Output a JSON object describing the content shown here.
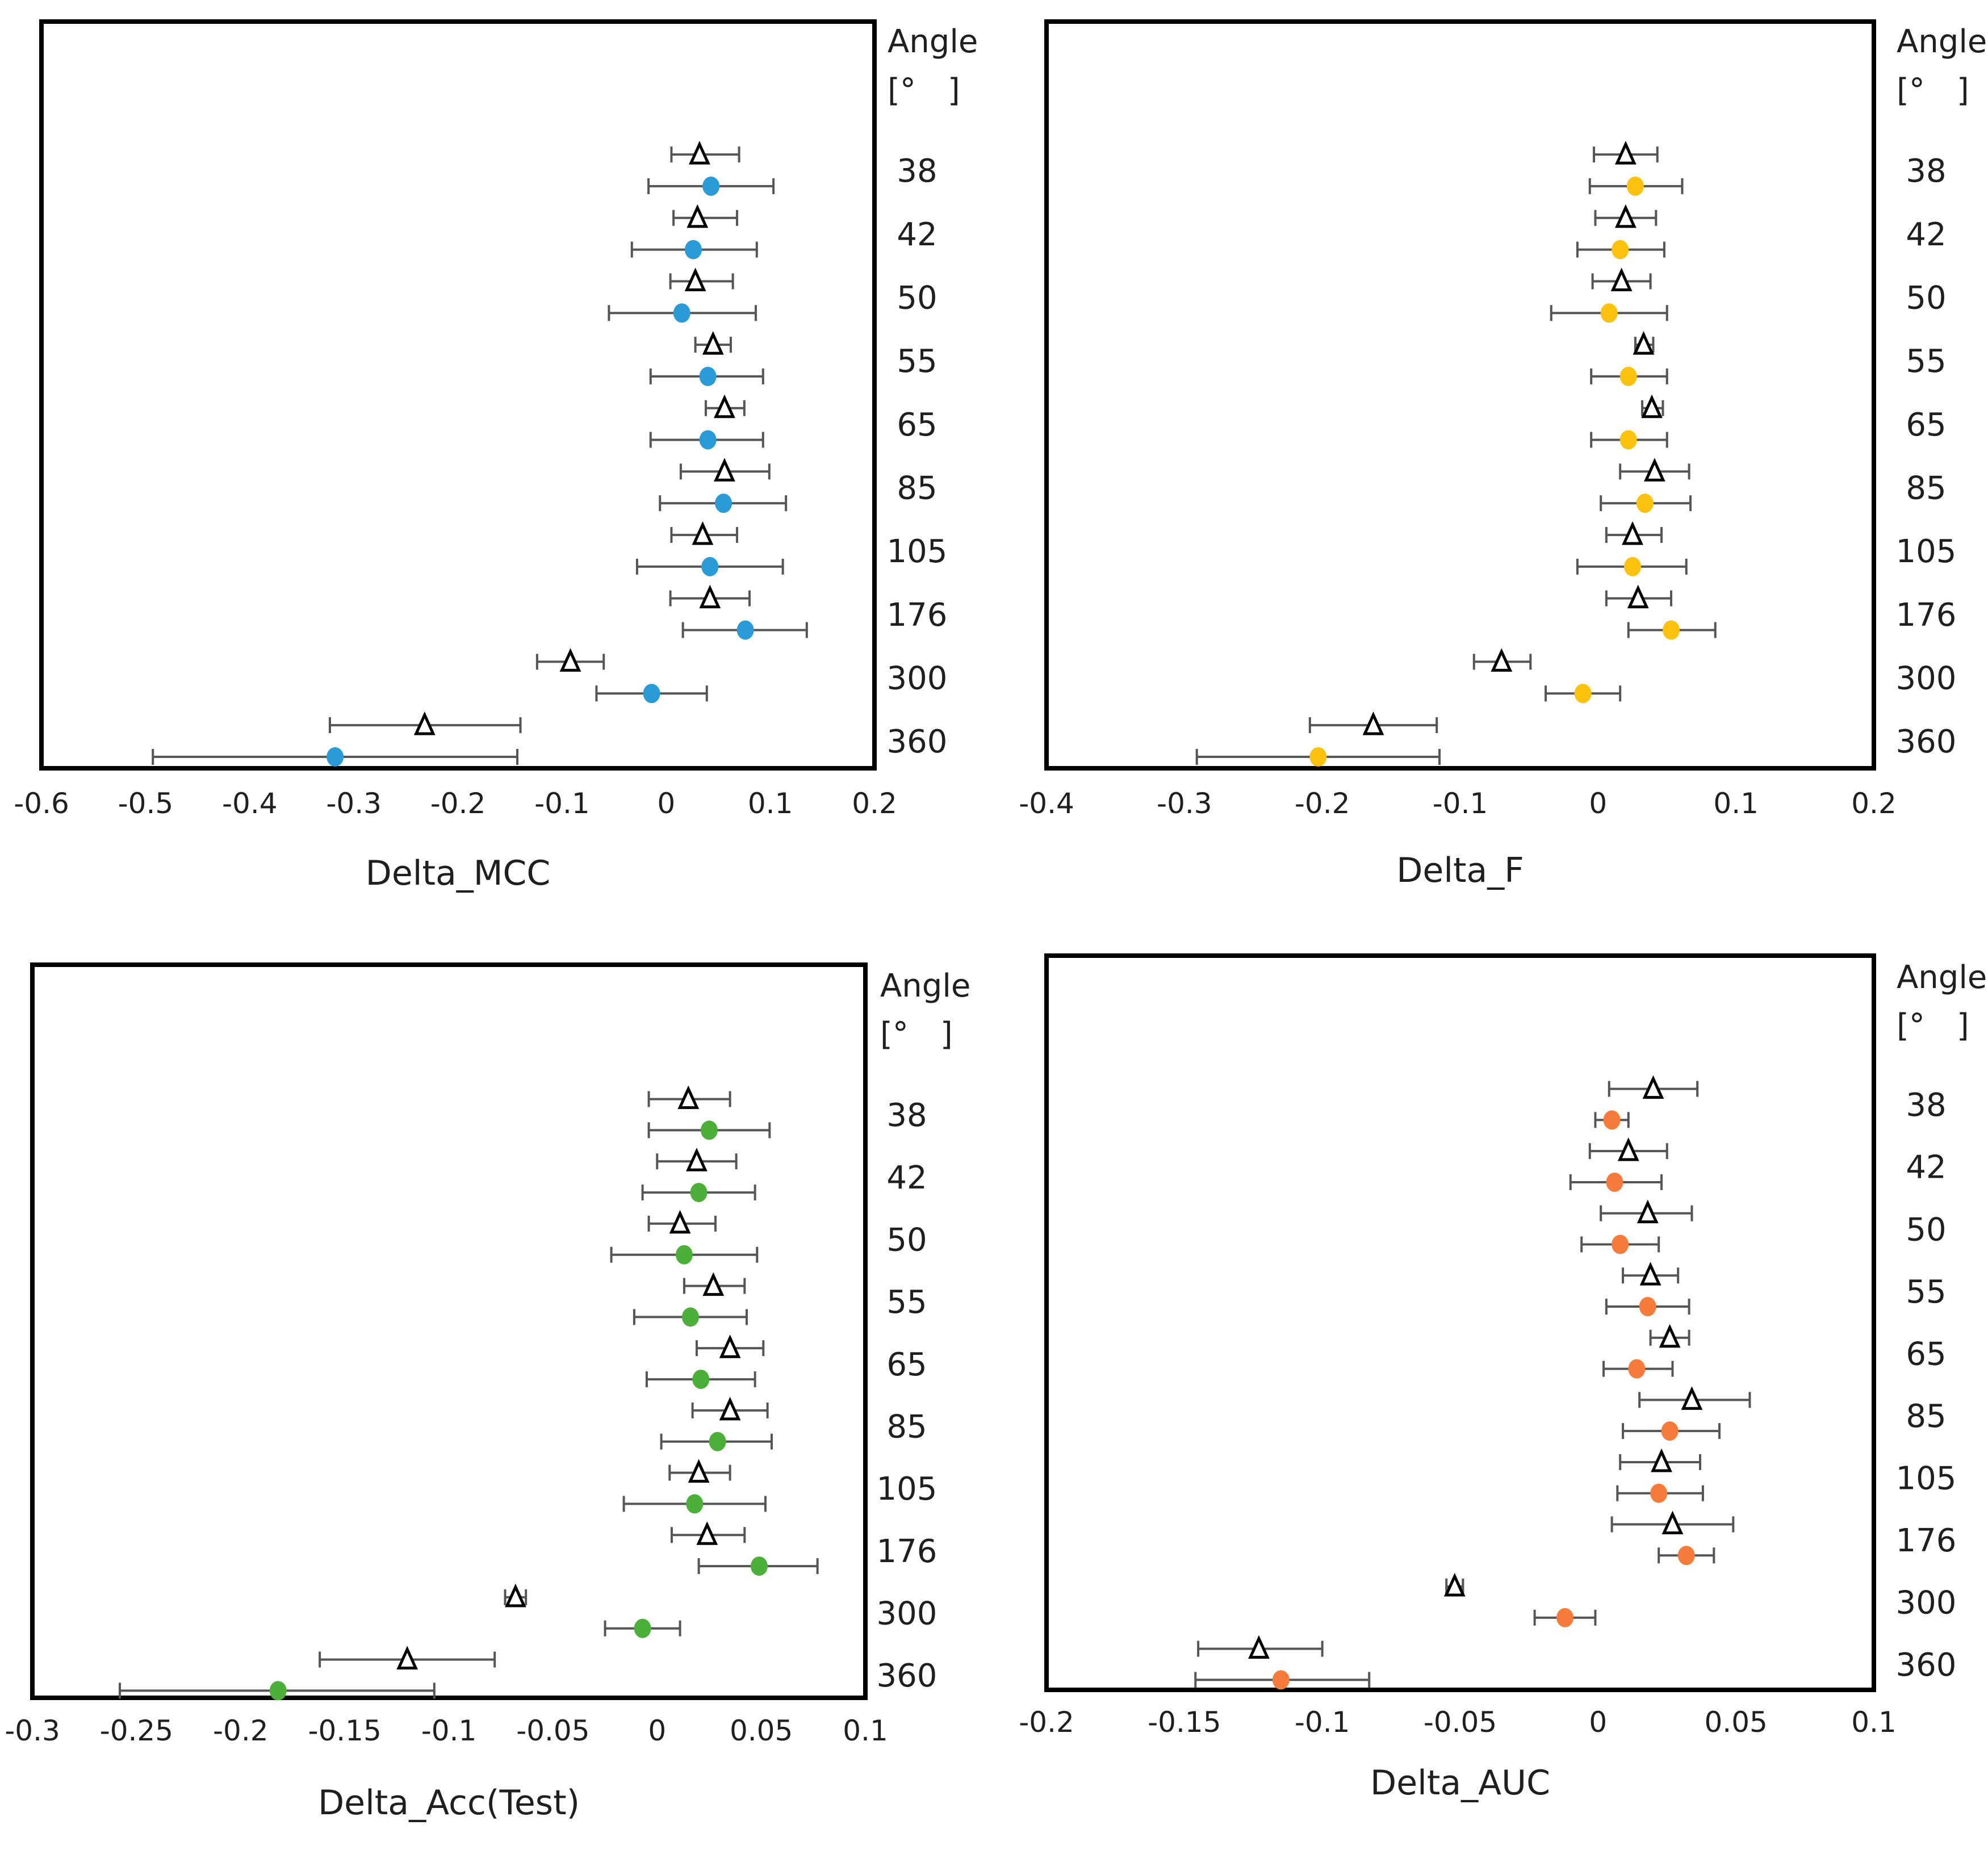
{
  "chart_data": [
    {
      "type": "scatter",
      "title": "",
      "xlabel": "Delta_MCC",
      "ylabel": "",
      "xlim": [
        -0.6,
        0.2
      ],
      "xticks": [
        -0.6,
        -0.5,
        -0.4,
        -0.3,
        -0.2,
        -0.1,
        0,
        0.1,
        0.2
      ],
      "xtick_labels": [
        "-0.6",
        "-0.5",
        "-0.4",
        "-0.3",
        "-0.2",
        "-0.1",
        "0",
        "0.1",
        "0.2"
      ],
      "grid": false,
      "legend_title": [
        "Angle",
        "[°　]"
      ],
      "angles": [
        "38",
        "42",
        "50",
        "55",
        "65",
        "85",
        "105",
        "176",
        "300",
        "360"
      ],
      "marker_color": "#2b9bd8",
      "series": [
        {
          "name": "triangle",
          "marker": "triangle",
          "values": [
            0.032,
            0.03,
            0.028,
            0.045,
            0.056,
            0.056,
            0.035,
            0.042,
            -0.092,
            -0.232
          ],
          "err_low": [
            0.005,
            0.007,
            0.004,
            0.028,
            0.038,
            0.014,
            0.005,
            0.004,
            -0.124,
            -0.323
          ],
          "err_high": [
            0.07,
            0.068,
            0.064,
            0.062,
            0.075,
            0.099,
            0.068,
            0.08,
            -0.06,
            -0.14
          ]
        },
        {
          "name": "circle",
          "marker": "circle",
          "values": [
            0.043,
            0.026,
            0.015,
            0.04,
            0.04,
            0.055,
            0.042,
            0.076,
            -0.014,
            -0.318
          ],
          "err_low": [
            -0.017,
            -0.033,
            -0.055,
            -0.015,
            -0.015,
            -0.006,
            -0.028,
            0.016,
            -0.067,
            -0.493
          ],
          "err_high": [
            0.103,
            0.087,
            0.086,
            0.093,
            0.093,
            0.115,
            0.112,
            0.135,
            0.039,
            -0.143
          ]
        }
      ]
    },
    {
      "type": "scatter",
      "title": "",
      "xlabel": "Delta_F",
      "ylabel": "",
      "xlim": [
        -0.4,
        0.2
      ],
      "xticks": [
        -0.4,
        -0.3,
        -0.2,
        -0.1,
        0,
        0.1,
        0.2
      ],
      "xtick_labels": [
        "-0.4",
        "-0.3",
        "-0.2",
        "-0.1",
        "0",
        "0.1",
        "0.2"
      ],
      "grid": false,
      "legend_title": [
        "Angle",
        "[°　]"
      ],
      "angles": [
        "38",
        "42",
        "50",
        "55",
        "65",
        "85",
        "105",
        "176",
        "300",
        "360"
      ],
      "marker_color": "#fcc20f",
      "series": [
        {
          "name": "triangle",
          "marker": "triangle",
          "values": [
            0.02,
            0.02,
            0.017,
            0.033,
            0.039,
            0.041,
            0.025,
            0.029,
            -0.07,
            -0.163
          ],
          "err_low": [
            -0.003,
            -0.002,
            -0.004,
            0.027,
            0.032,
            0.016,
            0.006,
            0.006,
            -0.09,
            -0.209
          ],
          "err_high": [
            0.043,
            0.042,
            0.038,
            0.04,
            0.047,
            0.066,
            0.046,
            0.053,
            -0.049,
            -0.117
          ]
        },
        {
          "name": "circle",
          "marker": "circle",
          "values": [
            0.027,
            0.016,
            0.008,
            0.022,
            0.022,
            0.034,
            0.025,
            0.053,
            -0.011,
            -0.203
          ],
          "err_low": [
            -0.006,
            -0.015,
            -0.034,
            -0.005,
            -0.005,
            0.002,
            -0.015,
            0.022,
            -0.038,
            -0.291
          ],
          "err_high": [
            0.061,
            0.048,
            0.05,
            0.05,
            0.05,
            0.067,
            0.064,
            0.085,
            0.016,
            -0.115
          ]
        }
      ]
    },
    {
      "type": "scatter",
      "title": "",
      "xlabel": "Delta_Acc(Test)",
      "ylabel": "",
      "xlim": [
        -0.3,
        0.1
      ],
      "xticks": [
        -0.3,
        -0.25,
        -0.2,
        -0.15,
        -0.1,
        -0.05,
        0,
        0.05,
        0.1
      ],
      "xtick_labels": [
        "-0.3",
        "-0.25",
        "-0.2",
        "-0.15",
        "-0.1",
        "-0.05",
        "0",
        "0.05",
        "0.1"
      ],
      "grid": false,
      "legend_title": [
        "Angle",
        "[°　]"
      ],
      "angles": [
        "38",
        "42",
        "50",
        "55",
        "65",
        "85",
        "105",
        "176",
        "300",
        "360"
      ],
      "marker_color": "#4caf3a",
      "series": [
        {
          "name": "triangle",
          "marker": "triangle",
          "values": [
            0.015,
            0.019,
            0.011,
            0.027,
            0.035,
            0.035,
            0.02,
            0.024,
            -0.068,
            -0.12
          ],
          "err_low": [
            -0.004,
            0.0,
            -0.004,
            0.013,
            0.019,
            0.017,
            0.006,
            0.007,
            -0.073,
            -0.162
          ],
          "err_high": [
            0.035,
            0.038,
            0.028,
            0.042,
            0.051,
            0.053,
            0.035,
            0.042,
            -0.063,
            -0.078
          ]
        },
        {
          "name": "circle",
          "marker": "circle",
          "values": [
            0.025,
            0.02,
            0.013,
            0.016,
            0.021,
            0.029,
            0.018,
            0.049,
            -0.007,
            -0.182
          ],
          "err_low": [
            -0.004,
            -0.007,
            -0.022,
            -0.011,
            -0.005,
            0.002,
            -0.016,
            0.02,
            -0.025,
            -0.258
          ],
          "err_high": [
            0.054,
            0.047,
            0.048,
            0.043,
            0.047,
            0.055,
            0.052,
            0.077,
            0.011,
            -0.107
          ]
        }
      ]
    },
    {
      "type": "scatter",
      "title": "",
      "xlabel": "Delta_AUC",
      "ylabel": "",
      "xlim": [
        -0.2,
        0.1
      ],
      "xticks": [
        -0.2,
        -0.15,
        -0.1,
        -0.05,
        0,
        0.05,
        0.1
      ],
      "xtick_labels": [
        "-0.2",
        "-0.15",
        "-0.1",
        "-0.05",
        "0",
        "0.05",
        "0.1"
      ],
      "grid": false,
      "legend_title": [
        "Angle",
        "[°　]"
      ],
      "angles": [
        "38",
        "42",
        "50",
        "55",
        "65",
        "85",
        "105",
        "176",
        "300",
        "360"
      ],
      "marker_color": "#f57c3a",
      "series": [
        {
          "name": "triangle",
          "marker": "triangle",
          "values": [
            0.02,
            0.011,
            0.018,
            0.019,
            0.026,
            0.034,
            0.023,
            0.027,
            -0.052,
            -0.123
          ],
          "err_low": [
            0.004,
            -0.003,
            0.001,
            0.009,
            0.019,
            0.015,
            0.008,
            0.005,
            -0.055,
            -0.145
          ],
          "err_high": [
            0.036,
            0.025,
            0.034,
            0.029,
            0.033,
            0.055,
            0.037,
            0.049,
            -0.049,
            -0.1
          ]
        },
        {
          "name": "circle",
          "marker": "circle",
          "values": [
            0.005,
            0.006,
            0.008,
            0.018,
            0.014,
            0.026,
            0.022,
            0.032,
            -0.012,
            -0.115
          ],
          "err_low": [
            -0.001,
            -0.01,
            -0.006,
            0.003,
            0.002,
            0.009,
            0.007,
            0.022,
            -0.023,
            -0.146
          ],
          "err_high": [
            0.011,
            0.023,
            0.022,
            0.033,
            0.027,
            0.044,
            0.038,
            0.042,
            -0.001,
            -0.083
          ]
        }
      ]
    }
  ]
}
